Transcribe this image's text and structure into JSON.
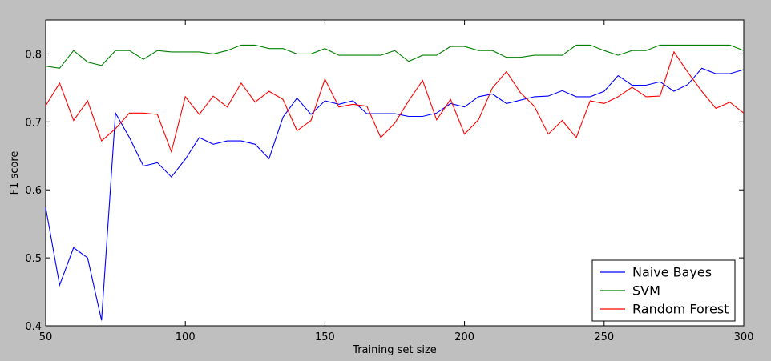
{
  "chart_data": {
    "type": "line",
    "xlabel": "Training set size",
    "ylabel": "F1 score",
    "xlim": [
      50,
      300
    ],
    "ylim": [
      0.4,
      0.85
    ],
    "xticks": [
      50,
      100,
      150,
      200,
      250,
      300
    ],
    "xtick_labels": [
      "50",
      "100",
      "150",
      "200",
      "250",
      "300"
    ],
    "yticks": [
      0.4,
      0.5,
      0.6,
      0.7,
      0.8
    ],
    "ytick_labels": [
      "0.4",
      "0.5",
      "0.6",
      "0.7",
      "0.8"
    ],
    "grid": false,
    "legend_position": "bottom-right",
    "x": [
      50,
      55,
      60,
      65,
      70,
      75,
      80,
      85,
      90,
      95,
      100,
      105,
      110,
      115,
      120,
      125,
      130,
      135,
      140,
      145,
      150,
      155,
      160,
      165,
      170,
      175,
      180,
      185,
      190,
      195,
      200,
      205,
      210,
      215,
      220,
      225,
      230,
      235,
      240,
      245,
      250,
      255,
      260,
      265,
      270,
      275,
      280,
      285,
      290,
      295,
      300
    ],
    "series": [
      {
        "name": "Naive Bayes",
        "color": "#0000ff",
        "values": [
          0.574,
          0.46,
          0.515,
          0.5,
          0.408,
          0.713,
          0.677,
          0.635,
          0.64,
          0.619,
          0.645,
          0.677,
          0.667,
          0.672,
          0.672,
          0.667,
          0.646,
          0.707,
          0.735,
          0.711,
          0.731,
          0.726,
          0.731,
          0.712,
          0.712,
          0.712,
          0.708,
          0.708,
          0.713,
          0.727,
          0.722,
          0.737,
          0.741,
          0.727,
          0.732,
          0.737,
          0.738,
          0.746,
          0.737,
          0.737,
          0.745,
          0.768,
          0.754,
          0.754,
          0.759,
          0.745,
          0.755,
          0.779,
          0.771,
          0.771,
          0.777
        ]
      },
      {
        "name": "SVM",
        "color": "#008000",
        "values": [
          0.782,
          0.779,
          0.805,
          0.788,
          0.783,
          0.805,
          0.805,
          0.792,
          0.805,
          0.803,
          0.803,
          0.803,
          0.8,
          0.805,
          0.813,
          0.813,
          0.808,
          0.808,
          0.8,
          0.8,
          0.808,
          0.798,
          0.798,
          0.798,
          0.798,
          0.805,
          0.789,
          0.798,
          0.798,
          0.811,
          0.811,
          0.805,
          0.805,
          0.795,
          0.795,
          0.798,
          0.798,
          0.798,
          0.813,
          0.813,
          0.805,
          0.798,
          0.805,
          0.805,
          0.813,
          0.813,
          0.813,
          0.813,
          0.813,
          0.813,
          0.805
        ]
      },
      {
        "name": "Random Forest",
        "color": "#ff0000",
        "values": [
          0.724,
          0.757,
          0.702,
          0.731,
          0.672,
          0.69,
          0.713,
          0.713,
          0.711,
          0.656,
          0.737,
          0.711,
          0.738,
          0.722,
          0.757,
          0.729,
          0.745,
          0.733,
          0.687,
          0.702,
          0.763,
          0.722,
          0.726,
          0.723,
          0.677,
          0.698,
          0.731,
          0.761,
          0.703,
          0.733,
          0.682,
          0.703,
          0.75,
          0.774,
          0.743,
          0.723,
          0.682,
          0.702,
          0.677,
          0.731,
          0.727,
          0.737,
          0.751,
          0.737,
          0.738,
          0.803,
          0.773,
          0.745,
          0.72,
          0.729,
          0.713
        ]
      }
    ]
  }
}
